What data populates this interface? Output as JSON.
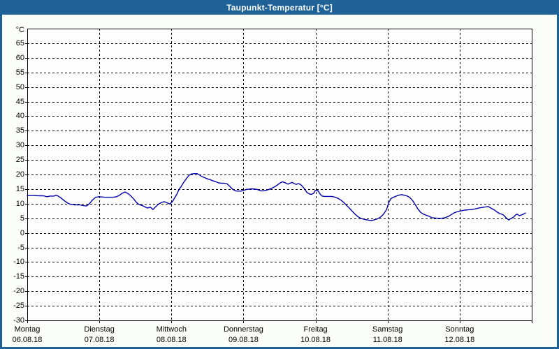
{
  "window": {
    "title": "Taupunkt-Temperatur [°C]"
  },
  "colors": {
    "titlebar": "#1e6298",
    "title_text": "#ffffff",
    "window_border": "#1e6298",
    "content_background": "#fbfdfb",
    "plot_background": "#fefefe",
    "axis_frame": "#000000",
    "grid": "#000000",
    "line": "#0000aa",
    "label_text": "#000000"
  },
  "chart_data": {
    "type": "line",
    "title": "Taupunkt-Temperatur [°C]",
    "ylabel": "°C",
    "ylim": [
      -30,
      70
    ],
    "y_tick_step": 5,
    "y_tick_labels": [
      "65",
      "60",
      "55",
      "50",
      "45",
      "40",
      "35",
      "30",
      "25",
      "20",
      "15",
      "10",
      "5",
      "0",
      "-5",
      "-10",
      "-15",
      "-20",
      "-25",
      "-30"
    ],
    "grid": "dashed",
    "legend": "none",
    "x_days": [
      {
        "name": "Montag",
        "date": "06.08.18"
      },
      {
        "name": "Dienstag",
        "date": "07.08.18"
      },
      {
        "name": "Mittwoch",
        "date": "08.08.18"
      },
      {
        "name": "Donnerstag",
        "date": "09.08.18"
      },
      {
        "name": "Freitag",
        "date": "10.08.18"
      },
      {
        "name": "Samstag",
        "date": "11.08.18"
      },
      {
        "name": "Sonntag",
        "date": "12.08.18"
      }
    ],
    "series": [
      {
        "name": "Taupunkt-Temperatur",
        "color": "#0000aa",
        "x_unit": "days_from_monday",
        "y_unit": "degC",
        "points": [
          [
            0.0,
            12.8
          ],
          [
            0.087,
            12.8
          ],
          [
            0.155,
            12.7
          ],
          [
            0.223,
            12.7
          ],
          [
            0.271,
            12.4
          ],
          [
            0.32,
            12.6
          ],
          [
            0.368,
            12.6
          ],
          [
            0.407,
            12.9
          ],
          [
            0.456,
            12.2
          ],
          [
            0.514,
            11.0
          ],
          [
            0.562,
            10.2
          ],
          [
            0.611,
            9.7
          ],
          [
            0.669,
            9.6
          ],
          [
            0.727,
            9.6
          ],
          [
            0.785,
            9.3
          ],
          [
            0.824,
            9.2
          ],
          [
            0.863,
            10.0
          ],
          [
            0.902,
            11.2
          ],
          [
            0.95,
            12.2
          ],
          [
            0.999,
            12.4
          ],
          [
            1.076,
            12.2
          ],
          [
            1.134,
            12.2
          ],
          [
            1.193,
            12.2
          ],
          [
            1.241,
            12.4
          ],
          [
            1.28,
            12.9
          ],
          [
            1.319,
            13.6
          ],
          [
            1.357,
            14.0
          ],
          [
            1.396,
            13.5
          ],
          [
            1.435,
            12.7
          ],
          [
            1.474,
            11.7
          ],
          [
            1.513,
            10.5
          ],
          [
            1.551,
            9.7
          ],
          [
            1.59,
            9.4
          ],
          [
            1.629,
            9.0
          ],
          [
            1.668,
            8.5
          ],
          [
            1.707,
            8.8
          ],
          [
            1.745,
            8.0
          ],
          [
            1.784,
            9.0
          ],
          [
            1.823,
            9.9
          ],
          [
            1.862,
            10.4
          ],
          [
            1.9,
            10.7
          ],
          [
            1.939,
            10.3
          ],
          [
            1.978,
            9.9
          ],
          [
            2.017,
            10.8
          ],
          [
            2.046,
            12.0
          ],
          [
            2.075,
            13.2
          ],
          [
            2.104,
            14.8
          ],
          [
            2.133,
            15.8
          ],
          [
            2.162,
            17.0
          ],
          [
            2.191,
            18.0
          ],
          [
            2.22,
            19.0
          ],
          [
            2.249,
            19.8
          ],
          [
            2.278,
            20.2
          ],
          [
            2.317,
            20.3
          ],
          [
            2.356,
            20.3
          ],
          [
            2.385,
            19.9
          ],
          [
            2.424,
            19.3
          ],
          [
            2.463,
            18.9
          ],
          [
            2.502,
            18.5
          ],
          [
            2.54,
            18.2
          ],
          [
            2.579,
            17.8
          ],
          [
            2.618,
            17.5
          ],
          [
            2.657,
            17.1
          ],
          [
            2.696,
            17.0
          ],
          [
            2.734,
            17.0
          ],
          [
            2.773,
            16.8
          ],
          [
            2.812,
            15.9
          ],
          [
            2.851,
            14.9
          ],
          [
            2.889,
            14.4
          ],
          [
            2.928,
            14.3
          ],
          [
            2.967,
            14.3
          ],
          [
            3.006,
            14.6
          ],
          [
            3.045,
            14.9
          ],
          [
            3.083,
            15.0
          ],
          [
            3.122,
            15.1
          ],
          [
            3.161,
            15.0
          ],
          [
            3.2,
            14.8
          ],
          [
            3.238,
            14.4
          ],
          [
            3.277,
            14.4
          ],
          [
            3.316,
            14.6
          ],
          [
            3.355,
            14.9
          ],
          [
            3.393,
            15.3
          ],
          [
            3.432,
            15.8
          ],
          [
            3.471,
            16.4
          ],
          [
            3.51,
            17.1
          ],
          [
            3.539,
            17.5
          ],
          [
            3.578,
            17.2
          ],
          [
            3.616,
            16.7
          ],
          [
            3.645,
            17.0
          ],
          [
            3.675,
            17.3
          ],
          [
            3.704,
            16.9
          ],
          [
            3.733,
            16.6
          ],
          [
            3.762,
            16.9
          ],
          [
            3.791,
            16.6
          ],
          [
            3.82,
            15.9
          ],
          [
            3.849,
            15.0
          ],
          [
            3.878,
            13.9
          ],
          [
            3.917,
            13.3
          ],
          [
            3.946,
            13.2
          ],
          [
            3.975,
            13.6
          ],
          [
            3.994,
            14.5
          ],
          [
            4.033,
            14.5
          ],
          [
            4.062,
            13.3
          ],
          [
            4.091,
            12.6
          ],
          [
            4.13,
            12.5
          ],
          [
            4.179,
            12.5
          ],
          [
            4.227,
            12.5
          ],
          [
            4.276,
            12.2
          ],
          [
            4.315,
            11.8
          ],
          [
            4.353,
            11.2
          ],
          [
            4.392,
            10.4
          ],
          [
            4.431,
            9.4
          ],
          [
            4.47,
            8.5
          ],
          [
            4.509,
            7.4
          ],
          [
            4.548,
            6.4
          ],
          [
            4.586,
            5.6
          ],
          [
            4.625,
            5.0
          ],
          [
            4.664,
            4.7
          ],
          [
            4.703,
            4.5
          ],
          [
            4.742,
            4.3
          ],
          [
            4.78,
            4.2
          ],
          [
            4.819,
            4.5
          ],
          [
            4.858,
            4.8
          ],
          [
            4.897,
            5.3
          ],
          [
            4.936,
            6.2
          ],
          [
            4.965,
            7.2
          ],
          [
            4.984,
            7.9
          ],
          [
            5.013,
            10.2
          ],
          [
            5.042,
            11.6
          ],
          [
            5.071,
            12.1
          ],
          [
            5.1,
            12.4
          ],
          [
            5.139,
            12.8
          ],
          [
            5.168,
            13.0
          ],
          [
            5.197,
            13.1
          ],
          [
            5.226,
            12.9
          ],
          [
            5.265,
            12.7
          ],
          [
            5.304,
            12.2
          ],
          [
            5.343,
            11.2
          ],
          [
            5.381,
            9.8
          ],
          [
            5.42,
            8.2
          ],
          [
            5.459,
            7.0
          ],
          [
            5.498,
            6.4
          ],
          [
            5.537,
            6.0
          ],
          [
            5.575,
            5.7
          ],
          [
            5.614,
            5.2
          ],
          [
            5.653,
            5.1
          ],
          [
            5.701,
            5.0
          ],
          [
            5.75,
            5.0
          ],
          [
            5.798,
            5.2
          ],
          [
            5.847,
            5.7
          ],
          [
            5.886,
            6.3
          ],
          [
            5.925,
            6.9
          ],
          [
            5.963,
            7.2
          ],
          [
            5.993,
            7.4
          ],
          [
            6.031,
            7.6
          ],
          [
            6.07,
            7.8
          ],
          [
            6.119,
            7.9
          ],
          [
            6.167,
            8.0
          ],
          [
            6.216,
            8.2
          ],
          [
            6.264,
            8.5
          ],
          [
            6.313,
            8.7
          ],
          [
            6.361,
            8.9
          ],
          [
            6.4,
            9.0
          ],
          [
            6.439,
            8.4
          ],
          [
            6.477,
            7.9
          ],
          [
            6.516,
            7.2
          ],
          [
            6.555,
            6.6
          ],
          [
            6.584,
            6.4
          ],
          [
            6.613,
            6.0
          ],
          [
            6.642,
            5.2
          ],
          [
            6.681,
            4.4
          ],
          [
            6.71,
            4.9
          ],
          [
            6.749,
            5.4
          ],
          [
            6.778,
            6.2
          ],
          [
            6.797,
            6.4
          ],
          [
            6.826,
            5.9
          ],
          [
            6.855,
            6.1
          ],
          [
            6.884,
            6.4
          ],
          [
            6.913,
            6.8
          ]
        ]
      }
    ]
  }
}
